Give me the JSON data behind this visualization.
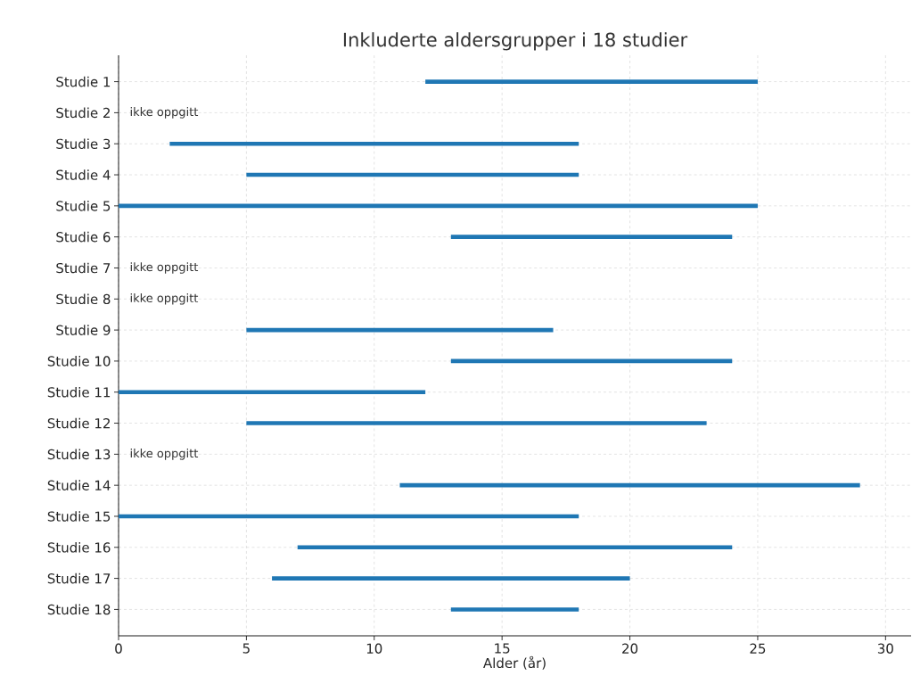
{
  "chart_data": {
    "type": "bar",
    "orientation": "horizontal",
    "title": "Inkluderte aldersgrupper i 18 studier",
    "xlabel": "Alder (år)",
    "categories": [
      "Studie 1",
      "Studie 2",
      "Studie 3",
      "Studie 4",
      "Studie 5",
      "Studie 6",
      "Studie 7",
      "Studie 8",
      "Studie 9",
      "Studie 10",
      "Studie 11",
      "Studie 12",
      "Studie 13",
      "Studie 14",
      "Studie 15",
      "Studie 16",
      "Studie 17",
      "Studie 18"
    ],
    "base": [
      12,
      null,
      2,
      5,
      0,
      13,
      null,
      null,
      5,
      13,
      0,
      5,
      null,
      11,
      0,
      7,
      6,
      13
    ],
    "values": [
      13,
      null,
      16,
      13,
      25,
      11,
      null,
      null,
      12,
      11,
      12,
      18,
      null,
      18,
      18,
      17,
      14,
      5
    ],
    "color": "#1f77b4",
    "xlim": [
      0,
      31
    ],
    "xticks": [
      0,
      5,
      10,
      15,
      20,
      25,
      30
    ],
    "grid": true,
    "annotations": [
      "ikke oppgitt",
      "ikke oppgitt",
      "ikke oppgitt",
      "ikke oppgitt"
    ]
  }
}
